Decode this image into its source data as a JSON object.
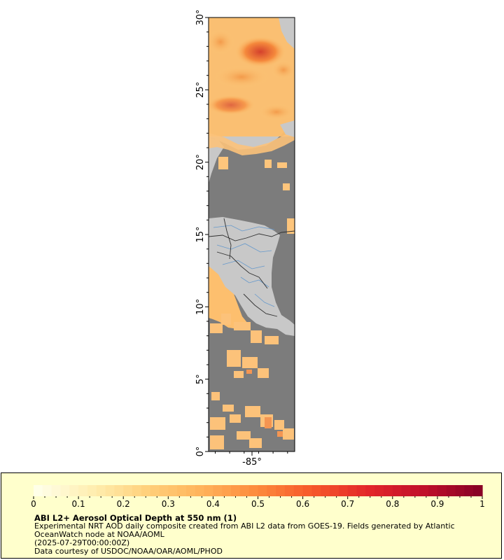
{
  "map": {
    "lat_ticks": [
      "30°",
      "25°",
      "20°",
      "15°",
      "10°",
      "5°",
      "0°"
    ],
    "lon_ticks": [
      "-85°"
    ],
    "colors": {
      "ocean": "#7c7c7c",
      "land": "#c8c8c8",
      "no_data": "#7c7c7c",
      "rivers": "#6699cc",
      "borders": "#202020"
    }
  },
  "legend": {
    "colorbar_ticks": [
      "0",
      "0.1",
      "0.2",
      "0.3",
      "0.4",
      "0.5",
      "0.6",
      "0.7",
      "0.8",
      "0.9",
      "1"
    ],
    "colorbar_range": [
      0,
      1
    ],
    "colorbar_colors": [
      "#ffffe8",
      "#ffeeb0",
      "#ffd07a",
      "#ffb25a",
      "#fd8a3c",
      "#f6582a",
      "#e3262a",
      "#c1102a",
      "#8a0226"
    ],
    "title": "ABI L2+ Aerosol Optical Depth at 550 nm (1)",
    "description": "Experimental NRT AOD daily composite created from ABI L2 data from GOES-19. Fields generated by Atlantic OceanWatch node at NOAA/AOML",
    "date": "(2025-07-29T00:00:00Z)",
    "credit": "Data courtesy of USDOC/NOAA/OAR/AOML/PHOD"
  }
}
